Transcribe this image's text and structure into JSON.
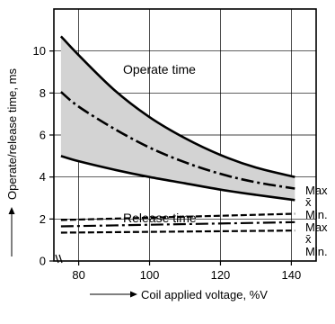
{
  "chart_data": {
    "type": "line",
    "xlabel": "Coil applied voltage, %V",
    "ylabel": "Operate/release time, ms",
    "xlim": [
      73,
      147
    ],
    "ylim": [
      0,
      12
    ],
    "x_ticks": [
      80,
      100,
      120,
      140
    ],
    "y_ticks": [
      0,
      2,
      4,
      6,
      8,
      10
    ],
    "x_tick_labels": [
      "80",
      "100",
      "120",
      "140"
    ],
    "y_tick_labels": [
      "0",
      "2",
      "4",
      "6",
      "8",
      "10"
    ],
    "axis_break": true,
    "grid": true,
    "band_color": "#d3d3d3",
    "series": [
      {
        "group": "operate",
        "name": "Max",
        "style": "solid",
        "x": [
          75,
          80,
          90,
          100,
          110,
          120,
          130,
          141
        ],
        "y": [
          10.7,
          9.8,
          8.15,
          6.85,
          5.85,
          5.05,
          4.45,
          4.0
        ]
      },
      {
        "group": "operate",
        "name": "x̄",
        "style": "dashdot",
        "x": [
          75,
          80,
          90,
          100,
          110,
          120,
          130,
          141
        ],
        "y": [
          8.05,
          7.35,
          6.3,
          5.4,
          4.7,
          4.15,
          3.75,
          3.45
        ]
      },
      {
        "group": "operate",
        "name": "Min.",
        "style": "solid",
        "x": [
          75,
          80,
          90,
          100,
          110,
          120,
          130,
          141
        ],
        "y": [
          5.0,
          4.75,
          4.35,
          4.0,
          3.7,
          3.4,
          3.15,
          2.9
        ]
      },
      {
        "group": "release",
        "name": "Max",
        "style": "dashed",
        "x": [
          75,
          141
        ],
        "y": [
          1.95,
          2.25
        ]
      },
      {
        "group": "release",
        "name": "x̄",
        "style": "dashdot",
        "x": [
          75,
          141
        ],
        "y": [
          1.65,
          1.85
        ]
      },
      {
        "group": "release",
        "name": "Min.",
        "style": "dashed",
        "x": [
          75,
          141
        ],
        "y": [
          1.35,
          1.45
        ]
      }
    ],
    "annotations": {
      "operate_label": "Operate time",
      "release_label": "Release time"
    },
    "legend_labels": [
      "Max",
      "x̄",
      "Min.",
      "Max",
      "x̄",
      "Min."
    ]
  }
}
